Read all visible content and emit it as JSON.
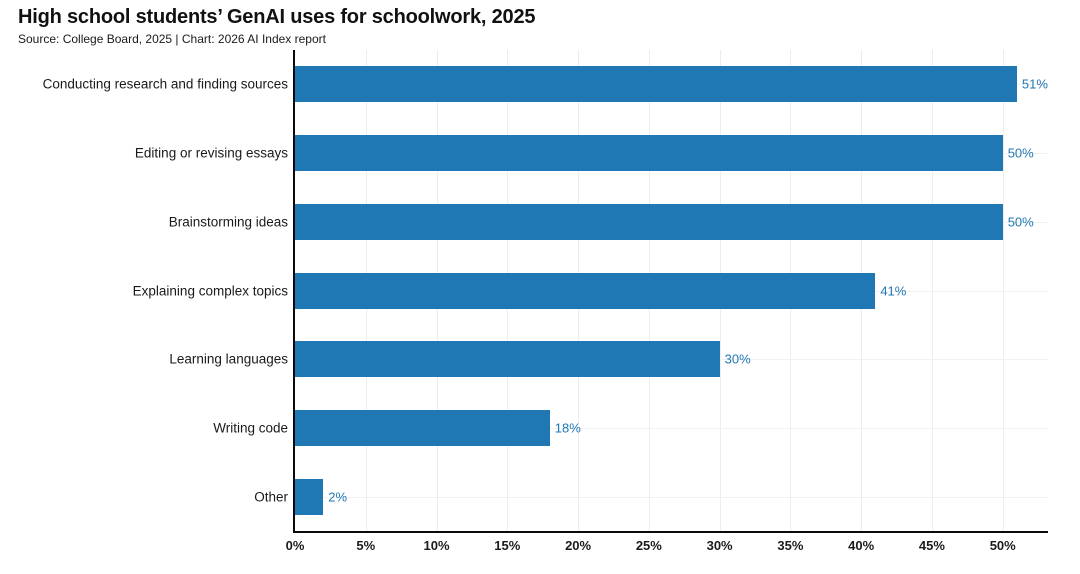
{
  "header": {
    "title": "High school students’ GenAI uses for schoolwork, 2025",
    "subtitle": "Source: College Board, 2025 | Chart: 2026 AI Index report"
  },
  "chart_data": {
    "type": "bar",
    "orientation": "horizontal",
    "title": "High school students’ GenAI uses for schoolwork, 2025",
    "subtitle": "Source: College Board, 2025 | Chart: 2026 AI Index report",
    "categories": [
      "Conducting research and finding sources",
      "Editing or revising essays",
      "Brainstorming ideas",
      "Explaining complex topics",
      "Learning languages",
      "Writing code",
      "Other"
    ],
    "values": [
      51,
      50,
      50,
      41,
      30,
      18,
      2
    ],
    "value_labels": [
      "51%",
      "50%",
      "50%",
      "41%",
      "30%",
      "18%",
      "2%"
    ],
    "xlabel": "",
    "ylabel": "",
    "xlim": [
      0,
      53.2
    ],
    "x_tick_values": [
      0,
      5,
      10,
      15,
      20,
      25,
      30,
      35,
      40,
      45,
      50
    ],
    "x_tick_labels": [
      "0%",
      "5%",
      "10%",
      "15%",
      "20%",
      "25%",
      "30%",
      "35%",
      "40%",
      "45%",
      "50%"
    ],
    "grid": "faint vertical lines at each x tick, faint horizontal lines at each category center",
    "legend": "none",
    "colors": {
      "bar": "#1f77b4",
      "value_label": "#1f77b4",
      "axis": "#0a0a0a",
      "gridline": "#ededed",
      "text": "#1a1a1a",
      "background": "#ffffff"
    }
  }
}
